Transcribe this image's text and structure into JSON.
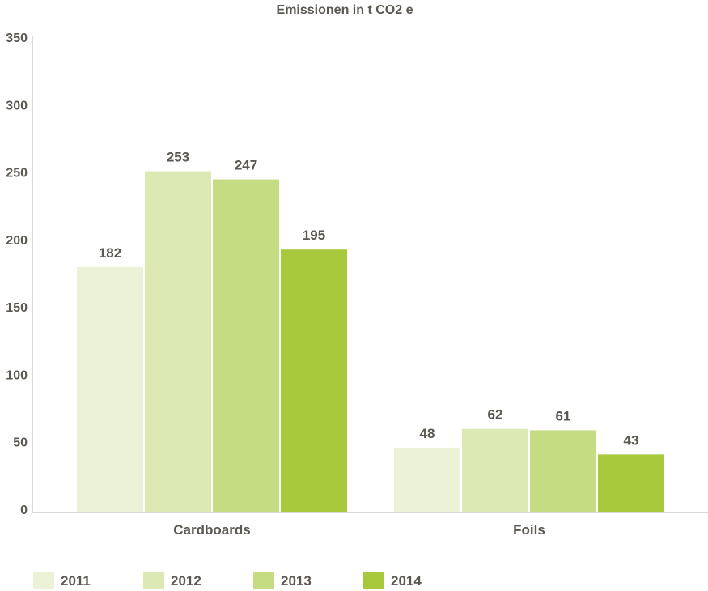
{
  "chart_data": {
    "type": "bar",
    "title": "Emissionen in t CO2 e",
    "categories": [
      "Cardboards",
      "Foils"
    ],
    "series": [
      {
        "name": "2011",
        "values": [
          182,
          48
        ],
        "color": "#ebf2d7"
      },
      {
        "name": "2012",
        "values": [
          253,
          62
        ],
        "color": "#dce9b4"
      },
      {
        "name": "2013",
        "values": [
          247,
          61
        ],
        "color": "#c6dc82"
      },
      {
        "name": "2014",
        "values": [
          195,
          43
        ],
        "color": "#a8c93b"
      }
    ],
    "ylim": [
      0,
      350
    ],
    "yticks": [
      "0",
      "50",
      "100",
      "150",
      "200",
      "250",
      "300",
      "350"
    ],
    "xlabel": "",
    "ylabel": "",
    "grid": false,
    "legend": "bottom",
    "text_color": "#5b5751"
  }
}
